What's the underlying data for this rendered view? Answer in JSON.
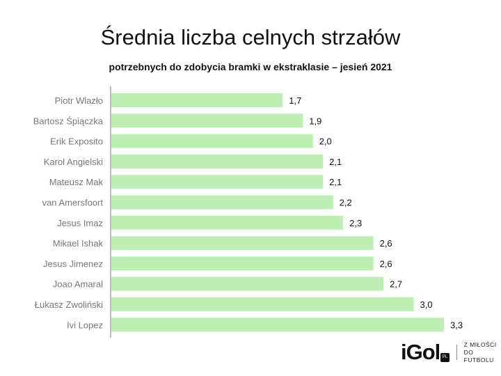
{
  "chart_data": {
    "type": "bar",
    "orientation": "horizontal",
    "title": "Średnia liczba celnych strzałów",
    "subtitle": "potrzebnych do zdobycia bramki w ekstraklasie – jesień 2021",
    "categories": [
      "Piotr Wlazło",
      "Bartosz Śpiączka",
      "Erik Exposito",
      "Karol Angielski",
      "Mateusz Mak",
      "van Amersfoort",
      "Jesus Imaz",
      "Mikael Ishak",
      "Jesus Jimenez",
      "Joao Amaral",
      "Łukasz Zwoliński",
      "Ivi Lopez"
    ],
    "values": [
      1.7,
      1.9,
      2.0,
      2.1,
      2.1,
      2.2,
      2.3,
      2.6,
      2.6,
      2.7,
      3.0,
      3.3
    ],
    "data_labels": [
      "1,7",
      "1,9",
      "2,0",
      "2,1",
      "2,1",
      "2,2",
      "2,3",
      "2,6",
      "2,6",
      "2,7",
      "3,0",
      "3,3"
    ],
    "xlim": [
      0,
      3.3
    ],
    "grid": false,
    "bar_color": "#bdeeb4"
  },
  "logo": {
    "word": "iGol",
    "badge": "PL",
    "tagline_1": "Z MIŁOŚCI",
    "tagline_2": "DO FUTBOLU"
  }
}
